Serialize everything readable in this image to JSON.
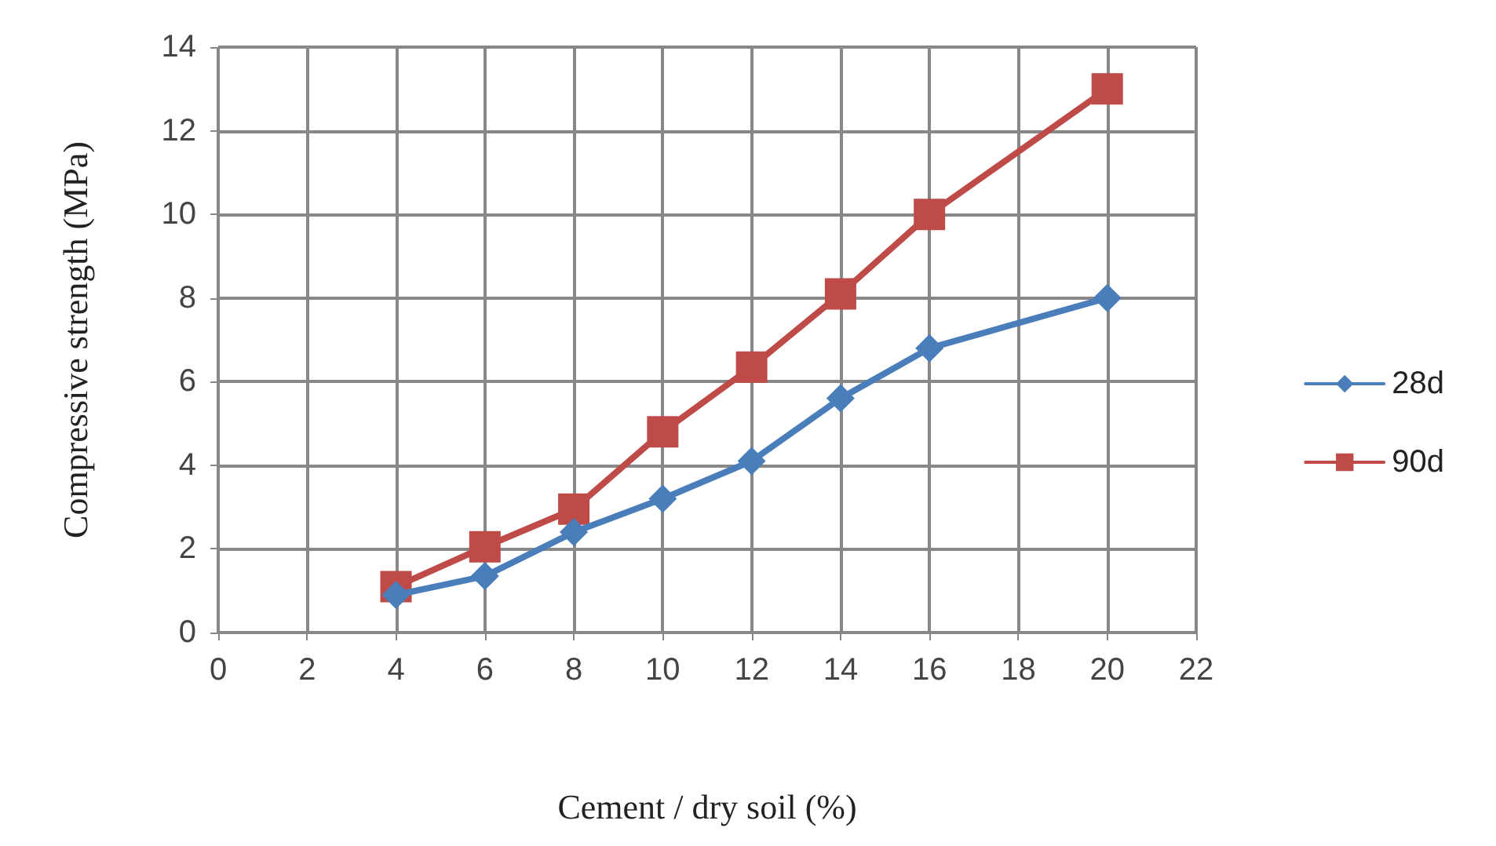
{
  "chart_data": {
    "type": "line",
    "xlabel": "Cement / dry soil (%)",
    "ylabel": "Compressive strength (MPa)",
    "x": [
      4,
      6,
      8,
      10,
      12,
      14,
      16,
      20
    ],
    "series": [
      {
        "name": "28d",
        "color": "#4a7ebb",
        "marker": "diamond",
        "values": [
          0.9,
          1.35,
          2.4,
          3.2,
          4.1,
          5.6,
          6.8,
          8.0
        ]
      },
      {
        "name": "90d",
        "color": "#be4b48",
        "marker": "square",
        "values": [
          1.1,
          2.05,
          2.95,
          4.8,
          6.35,
          8.1,
          10.0,
          13.0
        ]
      }
    ],
    "xlim": [
      0,
      22
    ],
    "xticks": [
      0,
      2,
      4,
      6,
      8,
      10,
      12,
      14,
      16,
      18,
      20,
      22
    ],
    "ylim": [
      0,
      14
    ],
    "yticks": [
      0,
      2,
      4,
      6,
      8,
      10,
      12,
      14
    ],
    "grid": true,
    "legend": "right",
    "line_style": "solid"
  }
}
